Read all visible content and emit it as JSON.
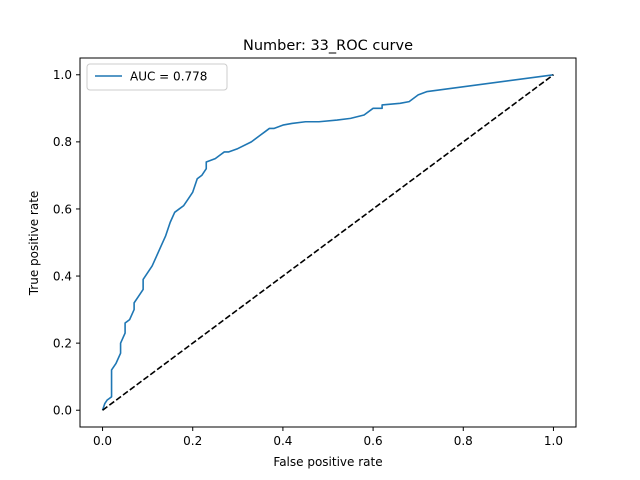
{
  "chart_data": {
    "type": "line",
    "title": "Number: 33_ROC curve",
    "xlabel": "False positive rate",
    "ylabel": "True positive rate",
    "xlim": [
      -0.05,
      1.05
    ],
    "ylim": [
      -0.05,
      1.05
    ],
    "xticks": [
      0.0,
      0.2,
      0.4,
      0.6,
      0.8,
      1.0
    ],
    "yticks": [
      0.0,
      0.2,
      0.4,
      0.6,
      0.8,
      1.0
    ],
    "xtick_labels": [
      "0.0",
      "0.2",
      "0.4",
      "0.6",
      "0.8",
      "1.0"
    ],
    "ytick_labels": [
      "0.0",
      "0.2",
      "0.4",
      "0.6",
      "0.8",
      "1.0"
    ],
    "grid": false,
    "legend": {
      "position": "upper-left",
      "entries": [
        "AUC = 0.778"
      ]
    },
    "series": [
      {
        "name": "AUC = 0.778",
        "color": "#1f77b4",
        "style": "solid",
        "x": [
          0.0,
          0.005,
          0.01,
          0.015,
          0.02,
          0.02,
          0.03,
          0.04,
          0.04,
          0.05,
          0.05,
          0.06,
          0.07,
          0.07,
          0.08,
          0.09,
          0.09,
          0.1,
          0.11,
          0.12,
          0.13,
          0.14,
          0.15,
          0.16,
          0.17,
          0.18,
          0.19,
          0.2,
          0.21,
          0.22,
          0.23,
          0.23,
          0.25,
          0.26,
          0.27,
          0.28,
          0.3,
          0.33,
          0.35,
          0.36,
          0.37,
          0.38,
          0.4,
          0.42,
          0.45,
          0.48,
          0.52,
          0.55,
          0.58,
          0.6,
          0.62,
          0.62,
          0.66,
          0.68,
          0.7,
          0.72,
          1.0
        ],
        "y": [
          0.0,
          0.02,
          0.03,
          0.035,
          0.04,
          0.12,
          0.14,
          0.17,
          0.2,
          0.23,
          0.26,
          0.27,
          0.3,
          0.32,
          0.34,
          0.36,
          0.39,
          0.41,
          0.43,
          0.46,
          0.49,
          0.52,
          0.56,
          0.59,
          0.6,
          0.61,
          0.63,
          0.65,
          0.69,
          0.7,
          0.72,
          0.74,
          0.75,
          0.76,
          0.77,
          0.77,
          0.78,
          0.8,
          0.82,
          0.83,
          0.84,
          0.84,
          0.85,
          0.855,
          0.86,
          0.86,
          0.865,
          0.87,
          0.88,
          0.9,
          0.9,
          0.91,
          0.915,
          0.92,
          0.94,
          0.95,
          1.0
        ]
      },
      {
        "name": "",
        "color": "#000000",
        "style": "dashed",
        "x": [
          0.0,
          1.0
        ],
        "y": [
          0.0,
          1.0
        ]
      }
    ]
  }
}
